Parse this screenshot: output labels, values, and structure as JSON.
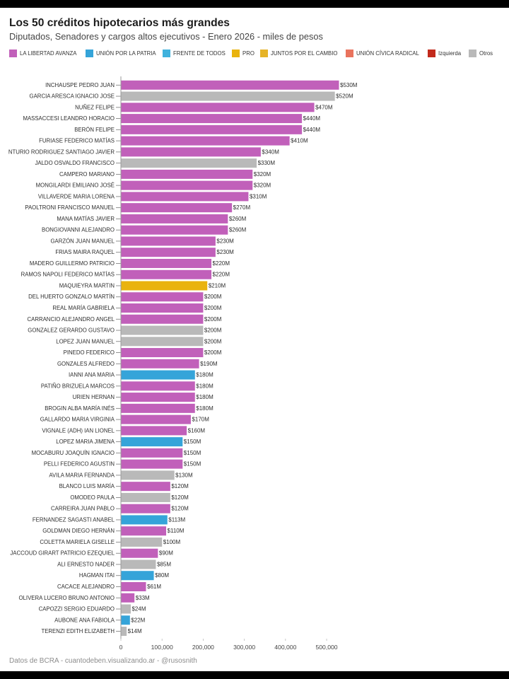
{
  "chart_data": {
    "type": "bar",
    "orientation": "horizontal",
    "title": "Los 50 créditos hipotecarios más grandes",
    "subtitle": "Diputados, Senadores y cargos altos ejecutivos - Enero 2026 - miles de pesos",
    "legend": [
      {
        "label": "LA LIBERTAD AVANZA",
        "color": "#c160ba"
      },
      {
        "label": "UNIÓN POR LA PATRIA",
        "color": "#35a4d9"
      },
      {
        "label": "FRENTE DE TODOS",
        "color": "#40b2dd"
      },
      {
        "label": "PRO",
        "color": "#e9b30e"
      },
      {
        "label": "JUNTOS POR EL CAMBIO",
        "color": "#e6b428"
      },
      {
        "label": "UNIÓN CÍVICA RADICAL",
        "color": "#e9735d"
      },
      {
        "label": "Izquierda",
        "color": "#c22a1c"
      },
      {
        "label": "Otros",
        "color": "#b9b9b9"
      }
    ],
    "categories": [
      "INCHAUSPE PEDRO JUAN",
      "GARCIA ARESCA IGNACIO JOSE",
      "NUÑEZ FELIPE",
      "MASSACCESI LEANDRO HORACIO",
      "BERÓN FELIPE",
      "FURIASE FEDERICO MATÍAS",
      "NTURIO RODRIGUEZ SANTIAGO JAVIER",
      "JALDO OSVALDO FRANCISCO",
      "CAMPERO MARIANO",
      "MONGILARDI EMILIANO JOSÉ",
      "VILLAVERDE MARIA LORENA",
      "PAOLTRONI FRANCISCO MANUEL",
      "MANA MATÍAS JAVIER",
      "BONGIOVANNI ALEJANDRO",
      "GARZÓN JUAN MANUEL",
      "FRIAS MAIRA RAQUEL",
      "MADERO GUILLERMO PATRICIO",
      "RAMOS NAPOLI FEDERICO MATÍAS",
      "MAQUIEYRA MARTIN",
      "DEL HUERTO GONZALO MARTÍN",
      "REAL MARÍA GABRIELA",
      "CARRANCIO ALEJANDRO ANGEL",
      "GONZALEZ GERARDO GUSTAVO",
      "LOPEZ JUAN MANUEL",
      "PINEDO FEDERICO",
      "GONZALES ALFREDO",
      "IANNI ANA MARIA",
      "PATIÑO BRIZUELA MARCOS",
      "URIEN HERNAN",
      "BROGIN ALBA MARÍA INÉS",
      "GALLARDO MARIA VIRGINIA",
      "VIGNALE (ADH) IAN LIONEL",
      "LOPEZ MARIA JIMENA",
      "MOCABURU JOAQUÍN IGNACIO",
      "PELLI FEDERICO AGUSTIN",
      "AVILA MARIA FERNANDA",
      "BLANCO LUIS MARÍA",
      "OMODEO PAULA",
      "CARREIRA JUAN PABLO",
      "FERNANDEZ SAGASTI ANABEL",
      "GOLDMAN DIEGO HERNÁN",
      "COLETTA MARIELA GISELLE",
      "JACCOUD GIRART PATRICIO EZEQUIEL",
      "ALI ERNESTO NADER",
      "HAGMAN ITAI",
      "CACACE ALEJANDRO",
      "OLIVERA LUCERO BRUNO ANTONIO",
      "CAPOZZI SERGIO EDUARDO",
      "AUBONE ANA FABIOLA",
      "TERENZI EDITH ELIZABETH"
    ],
    "values": [
      530000,
      520000,
      470000,
      440000,
      440000,
      410000,
      340000,
      330000,
      320000,
      320000,
      310000,
      270000,
      260000,
      260000,
      230000,
      230000,
      220000,
      220000,
      210000,
      200000,
      200000,
      200000,
      200000,
      200000,
      200000,
      190000,
      180000,
      180000,
      180000,
      180000,
      170000,
      160000,
      150000,
      150000,
      150000,
      130000,
      120000,
      120000,
      120000,
      113000,
      110000,
      100000,
      90000,
      85000,
      80000,
      61000,
      33000,
      24000,
      22000,
      14000
    ],
    "value_labels": [
      "$530M",
      "$520M",
      "$470M",
      "$440M",
      "$440M",
      "$410M",
      "$340M",
      "$330M",
      "$320M",
      "$320M",
      "$310M",
      "$270M",
      "$260M",
      "$260M",
      "$230M",
      "$230M",
      "$220M",
      "$220M",
      "$210M",
      "$200M",
      "$200M",
      "$200M",
      "$200M",
      "$200M",
      "$200M",
      "$190M",
      "$180M",
      "$180M",
      "$180M",
      "$180M",
      "$170M",
      "$160M",
      "$150M",
      "$150M",
      "$150M",
      "$130M",
      "$120M",
      "$120M",
      "$120M",
      "$113M",
      "$110M",
      "$100M",
      "$90M",
      "$85M",
      "$80M",
      "$61M",
      "$33M",
      "$24M",
      "$22M",
      "$14M"
    ],
    "groups": [
      0,
      7,
      0,
      0,
      0,
      0,
      0,
      7,
      0,
      0,
      0,
      0,
      0,
      0,
      0,
      0,
      0,
      0,
      3,
      0,
      0,
      0,
      7,
      7,
      0,
      0,
      1,
      0,
      0,
      0,
      0,
      0,
      1,
      0,
      0,
      7,
      0,
      7,
      0,
      1,
      0,
      7,
      0,
      7,
      1,
      0,
      0,
      7,
      1,
      7
    ],
    "xlim": [
      0,
      530000
    ],
    "x_ticks": [
      0,
      100000,
      200000,
      300000,
      400000,
      500000
    ],
    "x_tick_labels": [
      "0",
      "100,000",
      "200,000",
      "300,000",
      "400,000",
      "500,000"
    ]
  },
  "footer": "Datos de BCRA - cuantodeben.visualizando.ar - @rusosnith"
}
